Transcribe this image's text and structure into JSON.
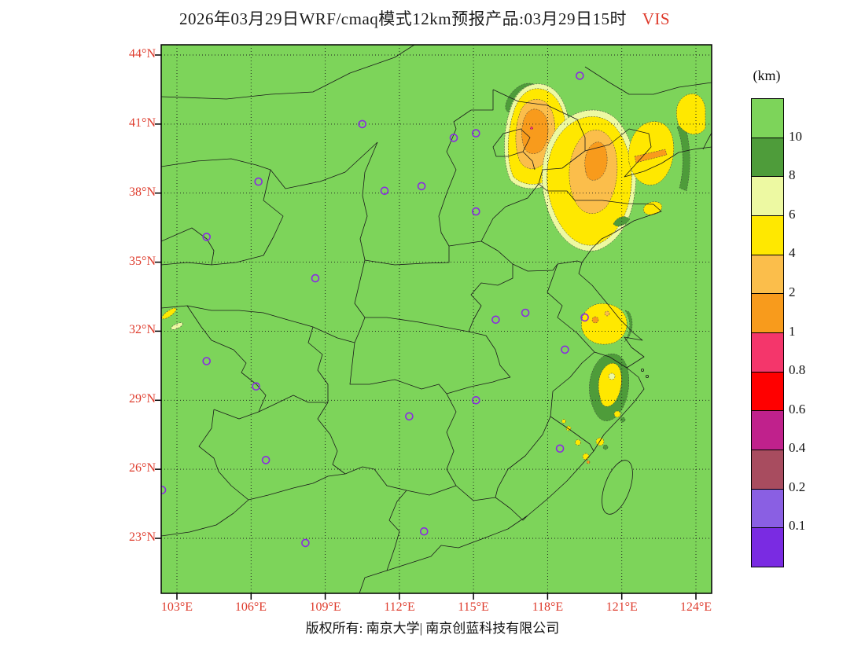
{
  "title": {
    "text": "2026年03月29日WRF/cmaq模式12km预报产品:03月29日15时",
    "variable": "VIS"
  },
  "axes": {
    "lat_ticks": [
      "44°N",
      "41°N",
      "38°N",
      "35°N",
      "32°N",
      "29°N",
      "26°N",
      "23°N"
    ],
    "lon_ticks": [
      "103°E",
      "106°E",
      "109°E",
      "112°E",
      "115°E",
      "118°E",
      "121°E",
      "124°E"
    ]
  },
  "colorbar": {
    "unit": "(km)",
    "tick_labels": [
      "10",
      "8",
      "6",
      "4",
      "2",
      "1",
      "0.8",
      "0.6",
      "0.4",
      "0.2",
      "0.1"
    ],
    "colors": [
      "#7DD45A",
      "#4E9C3A",
      "#EDF9A2",
      "#FFE800",
      "#FBBE4B",
      "#F89B1C",
      "#F4366B",
      "#FF0000",
      "#C0218C",
      "#A84C5F",
      "#8A5FE3",
      "#7A2BE2"
    ]
  },
  "map": {
    "background_color": "#7DD45A",
    "marker_color": "#8A2BE2",
    "stations": [
      {
        "lon": 119.3,
        "lat": 43.1
      },
      {
        "lon": 110.5,
        "lat": 41.0
      },
      {
        "lon": 114.2,
        "lat": 40.4
      },
      {
        "lon": 115.1,
        "lat": 40.6
      },
      {
        "lon": 106.3,
        "lat": 38.5
      },
      {
        "lon": 111.4,
        "lat": 38.1
      },
      {
        "lon": 112.9,
        "lat": 38.3
      },
      {
        "lon": 115.1,
        "lat": 37.2
      },
      {
        "lon": 104.2,
        "lat": 36.1
      },
      {
        "lon": 108.6,
        "lat": 34.3
      },
      {
        "lon": 115.9,
        "lat": 32.5
      },
      {
        "lon": 117.1,
        "lat": 32.8
      },
      {
        "lon": 119.5,
        "lat": 32.6
      },
      {
        "lon": 104.2,
        "lat": 30.7
      },
      {
        "lon": 106.2,
        "lat": 29.6
      },
      {
        "lon": 112.4,
        "lat": 28.3
      },
      {
        "lon": 115.1,
        "lat": 29.0
      },
      {
        "lon": 118.7,
        "lat": 31.2
      },
      {
        "lon": 106.6,
        "lat": 26.4
      },
      {
        "lon": 118.5,
        "lat": 26.9
      },
      {
        "lon": 108.2,
        "lat": 22.8
      },
      {
        "lon": 113.0,
        "lat": 23.3
      },
      {
        "lon": 102.4,
        "lat": 25.1
      }
    ]
  },
  "footer": {
    "text": "版权所有: 南京大学| 南京创蓝科技有限公司"
  }
}
